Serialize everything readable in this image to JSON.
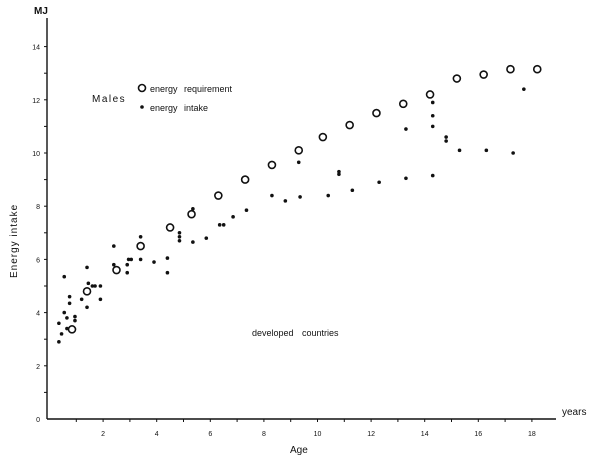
{
  "chart_data": {
    "type": "scatter",
    "title": "",
    "xlabel": "Age",
    "x_unit": "years",
    "ylabel": "Energy intake",
    "y_unit": "MJ",
    "xlim": [
      0,
      19
    ],
    "ylim": [
      0,
      15
    ],
    "x_ticks": [
      2,
      4,
      6,
      8,
      10,
      12,
      14,
      16,
      18
    ],
    "y_ticks": [
      0,
      2,
      4,
      6,
      8,
      10,
      12,
      14
    ],
    "grid": false,
    "legend_placement": "top-left",
    "legend_heading": "Males",
    "annotation": "developed countries",
    "series": [
      {
        "name": "energy requirement",
        "marker": "open-circle",
        "points": [
          [
            0.84,
            3.37
          ],
          [
            1.4,
            4.8
          ],
          [
            2.5,
            5.6
          ],
          [
            3.4,
            6.5
          ],
          [
            4.5,
            7.2
          ],
          [
            5.3,
            7.7
          ],
          [
            6.3,
            8.4
          ],
          [
            7.3,
            9.0
          ],
          [
            8.3,
            9.55
          ],
          [
            9.3,
            10.1
          ],
          [
            10.2,
            10.6
          ],
          [
            11.2,
            11.05
          ],
          [
            12.2,
            11.5
          ],
          [
            13.2,
            11.85
          ],
          [
            14.2,
            12.2
          ],
          [
            15.2,
            12.8
          ],
          [
            16.2,
            12.95
          ],
          [
            17.2,
            13.15
          ],
          [
            18.2,
            13.15
          ]
        ]
      },
      {
        "name": "energy intake",
        "marker": "dot",
        "points": [
          [
            0.35,
            3.6
          ],
          [
            0.35,
            2.9
          ],
          [
            0.45,
            3.2
          ],
          [
            0.55,
            5.35
          ],
          [
            0.55,
            4.0
          ],
          [
            0.65,
            3.8
          ],
          [
            0.65,
            3.4
          ],
          [
            0.75,
            4.6
          ],
          [
            0.75,
            4.35
          ],
          [
            0.95,
            3.85
          ],
          [
            0.95,
            3.7
          ],
          [
            1.2,
            4.5
          ],
          [
            1.4,
            5.7
          ],
          [
            1.4,
            4.2
          ],
          [
            1.45,
            5.1
          ],
          [
            1.6,
            5.0
          ],
          [
            1.7,
            5.0
          ],
          [
            1.9,
            5.0
          ],
          [
            1.9,
            4.5
          ],
          [
            2.4,
            6.5
          ],
          [
            2.4,
            5.8
          ],
          [
            2.9,
            5.8
          ],
          [
            2.9,
            5.5
          ],
          [
            2.95,
            6.0
          ],
          [
            3.05,
            6.0
          ],
          [
            3.4,
            6.85
          ],
          [
            3.4,
            6.0
          ],
          [
            3.9,
            5.9
          ],
          [
            4.4,
            6.05
          ],
          [
            4.4,
            5.5
          ],
          [
            4.85,
            7.0
          ],
          [
            4.85,
            6.85
          ],
          [
            4.85,
            6.7
          ],
          [
            5.35,
            6.65
          ],
          [
            5.35,
            7.9
          ],
          [
            5.85,
            6.8
          ],
          [
            6.35,
            7.3
          ],
          [
            6.5,
            7.3
          ],
          [
            6.85,
            7.6
          ],
          [
            7.35,
            7.85
          ],
          [
            8.3,
            8.4
          ],
          [
            8.8,
            8.2
          ],
          [
            9.35,
            8.35
          ],
          [
            9.3,
            9.65
          ],
          [
            10.4,
            8.4
          ],
          [
            10.8,
            9.3
          ],
          [
            10.8,
            9.2
          ],
          [
            11.3,
            8.6
          ],
          [
            12.3,
            8.9
          ],
          [
            13.3,
            9.05
          ],
          [
            13.3,
            10.9
          ],
          [
            14.3,
            9.15
          ],
          [
            14.3,
            11.9
          ],
          [
            14.3,
            11.4
          ],
          [
            14.3,
            11.0
          ],
          [
            14.8,
            10.6
          ],
          [
            14.8,
            10.45
          ],
          [
            15.3,
            10.1
          ],
          [
            16.3,
            10.1
          ],
          [
            17.3,
            10.0
          ],
          [
            17.7,
            12.4
          ]
        ]
      }
    ]
  }
}
